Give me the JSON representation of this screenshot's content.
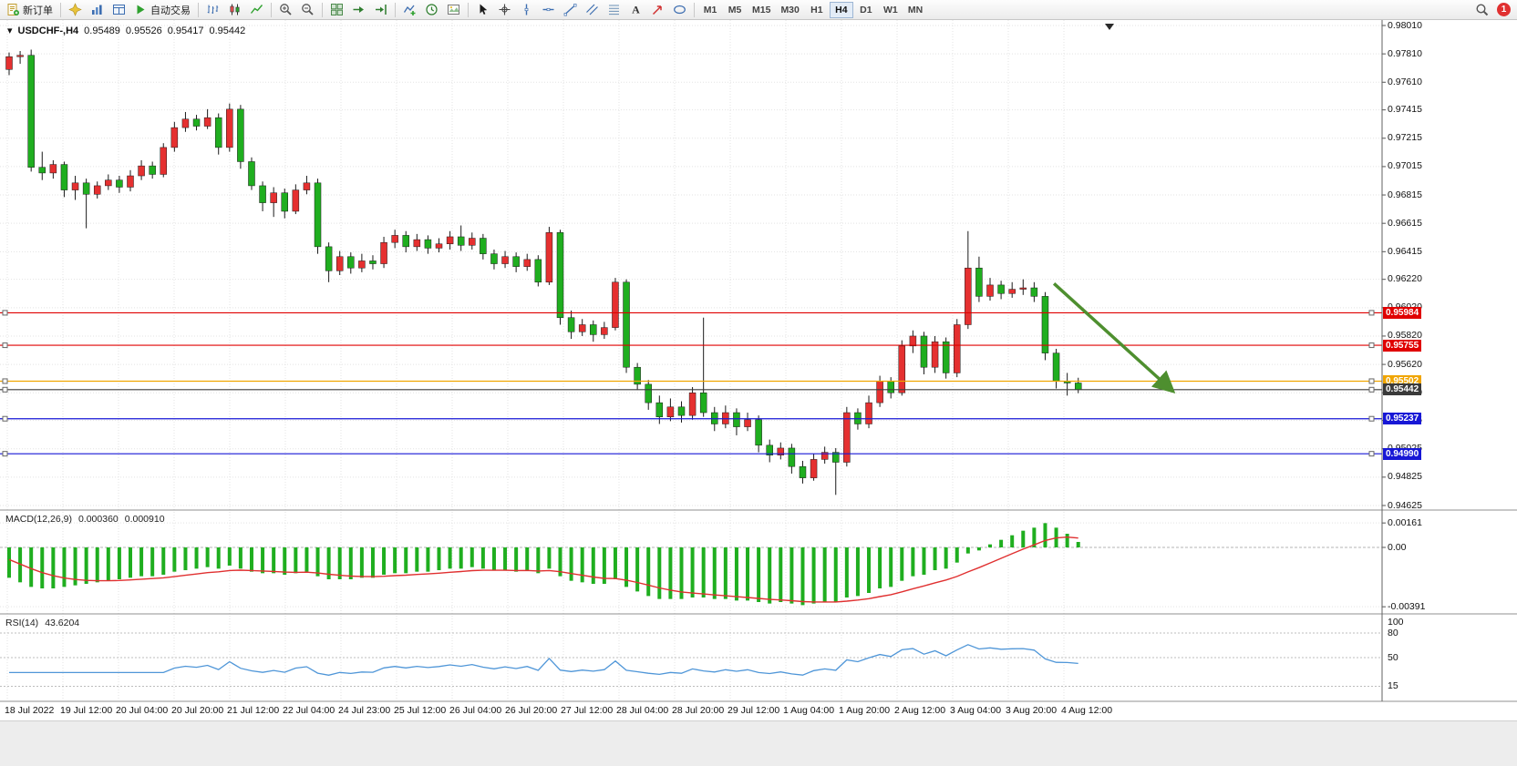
{
  "toolbar": {
    "new_order_label": "新订单",
    "autotrading_label": "自动交易",
    "timeframes": [
      "M1",
      "M5",
      "M15",
      "M30",
      "H1",
      "H4",
      "D1",
      "W1",
      "MN"
    ],
    "active_timeframe": "H4",
    "notification_count": "1"
  },
  "chart_title": {
    "symbol": "USDCHF-,H4",
    "open": "0.95489",
    "high": "0.95526",
    "low": "0.95417",
    "close": "0.95442"
  },
  "chart_data": [
    {
      "type": "candlestick",
      "title": "USDCHF- H4 price chart",
      "price_range": {
        "top": 0.9801,
        "bottom": 0.94625
      },
      "colors": {
        "up": "#e53030",
        "down": "#1fae1f"
      },
      "axis_labels": [
        "0.98010",
        "0.97810",
        "0.97610",
        "0.97415",
        "0.97215",
        "0.97015",
        "0.96815",
        "0.96615",
        "0.96415",
        "0.96220",
        "0.96020",
        "0.95820",
        "0.95620",
        "0.95420",
        "0.95225",
        "0.95025",
        "0.94825",
        "0.94625"
      ],
      "time_labels": [
        "18 Jul 2022",
        "19 Jul 12:00",
        "20 Jul 04:00",
        "20 Jul 20:00",
        "21 Jul 12:00",
        "22 Jul 04:00",
        "24 Jul 23:00",
        "25 Jul 12:00",
        "26 Jul 04:00",
        "26 Jul 20:00",
        "27 Jul 12:00",
        "28 Jul 04:00",
        "28 Jul 20:00",
        "29 Jul 12:00",
        "1 Aug 04:00",
        "1 Aug 20:00",
        "2 Aug 12:00",
        "3 Aug 04:00",
        "3 Aug 20:00",
        "4 Aug 12:00"
      ],
      "horizontal_lines": [
        {
          "price": 0.95984,
          "label": "0.95984",
          "color": "#e00000"
        },
        {
          "price": 0.95755,
          "label": "0.95755",
          "color": "#e00000"
        },
        {
          "price": 0.95502,
          "label": "0.95502",
          "color": "#f0a500"
        },
        {
          "price": 0.95442,
          "label": "0.95442",
          "color": "#3a3a3a"
        },
        {
          "price": 0.95237,
          "label": "0.95237",
          "color": "#1717d6"
        },
        {
          "price": 0.9499,
          "label": "0.94990",
          "color": "#1717d6"
        }
      ],
      "trend_arrow": {
        "color": "#4e8f2f",
        "from": {
          "bar": 94.8,
          "price": 0.9619
        },
        "to": {
          "bar": 105.6,
          "price": 0.9543
        }
      },
      "candles": [
        [
          0.977,
          0.9782,
          0.9766,
          0.9779
        ],
        [
          0.9779,
          0.9783,
          0.9774,
          0.978
        ],
        [
          0.978,
          0.9784,
          0.9698,
          0.9701
        ],
        [
          0.9701,
          0.9712,
          0.9692,
          0.9697
        ],
        [
          0.9697,
          0.9706,
          0.9693,
          0.9703
        ],
        [
          0.9703,
          0.9705,
          0.968,
          0.9685
        ],
        [
          0.9685,
          0.9695,
          0.9678,
          0.969
        ],
        [
          0.969,
          0.9693,
          0.9658,
          0.9682
        ],
        [
          0.9682,
          0.9691,
          0.9679,
          0.9688
        ],
        [
          0.9688,
          0.9696,
          0.9685,
          0.9692
        ],
        [
          0.9692,
          0.9695,
          0.9683,
          0.9687
        ],
        [
          0.9687,
          0.9699,
          0.9684,
          0.9695
        ],
        [
          0.9695,
          0.9706,
          0.9692,
          0.9702
        ],
        [
          0.9702,
          0.9705,
          0.9693,
          0.9696
        ],
        [
          0.9696,
          0.9718,
          0.9694,
          0.9715
        ],
        [
          0.9715,
          0.9733,
          0.9712,
          0.9729
        ],
        [
          0.9729,
          0.974,
          0.9726,
          0.9735
        ],
        [
          0.9735,
          0.9738,
          0.9727,
          0.973
        ],
        [
          0.973,
          0.9742,
          0.9728,
          0.9736
        ],
        [
          0.9736,
          0.9739,
          0.971,
          0.9715
        ],
        [
          0.9715,
          0.9746,
          0.9712,
          0.9742
        ],
        [
          0.9742,
          0.9745,
          0.97,
          0.9705
        ],
        [
          0.9705,
          0.9708,
          0.9685,
          0.9688
        ],
        [
          0.9688,
          0.9691,
          0.967,
          0.9676
        ],
        [
          0.9676,
          0.9687,
          0.9666,
          0.9683
        ],
        [
          0.9683,
          0.9686,
          0.9665,
          0.967
        ],
        [
          0.967,
          0.9689,
          0.9668,
          0.9685
        ],
        [
          0.9685,
          0.9695,
          0.9682,
          0.969
        ],
        [
          0.969,
          0.9693,
          0.964,
          0.9645
        ],
        [
          0.9645,
          0.9648,
          0.962,
          0.9628
        ],
        [
          0.9628,
          0.9642,
          0.9625,
          0.9638
        ],
        [
          0.9638,
          0.9641,
          0.9626,
          0.963
        ],
        [
          0.963,
          0.964,
          0.9627,
          0.9635
        ],
        [
          0.9635,
          0.9639,
          0.9629,
          0.9633
        ],
        [
          0.9633,
          0.9652,
          0.963,
          0.9648
        ],
        [
          0.9648,
          0.9657,
          0.9644,
          0.9653
        ],
        [
          0.9653,
          0.9656,
          0.9641,
          0.9645
        ],
        [
          0.9645,
          0.9654,
          0.9642,
          0.965
        ],
        [
          0.965,
          0.9653,
          0.964,
          0.9644
        ],
        [
          0.9644,
          0.9651,
          0.9641,
          0.9647
        ],
        [
          0.9647,
          0.9656,
          0.9643,
          0.9652
        ],
        [
          0.9652,
          0.966,
          0.9642,
          0.9646
        ],
        [
          0.9646,
          0.9655,
          0.9643,
          0.9651
        ],
        [
          0.9651,
          0.9654,
          0.9636,
          0.964
        ],
        [
          0.964,
          0.9643,
          0.9629,
          0.9633
        ],
        [
          0.9633,
          0.9642,
          0.963,
          0.9638
        ],
        [
          0.9638,
          0.9641,
          0.9627,
          0.9631
        ],
        [
          0.9631,
          0.964,
          0.9628,
          0.9636
        ],
        [
          0.9636,
          0.9639,
          0.9617,
          0.962
        ],
        [
          0.962,
          0.9659,
          0.9618,
          0.9655
        ],
        [
          0.9655,
          0.9657,
          0.959,
          0.9595
        ],
        [
          0.9595,
          0.96,
          0.958,
          0.9585
        ],
        [
          0.9585,
          0.9594,
          0.9582,
          0.959
        ],
        [
          0.959,
          0.9593,
          0.9578,
          0.9583
        ],
        [
          0.9583,
          0.9592,
          0.958,
          0.9588
        ],
        [
          0.9588,
          0.9623,
          0.9586,
          0.962
        ],
        [
          0.962,
          0.9622,
          0.9556,
          0.956
        ],
        [
          0.956,
          0.9563,
          0.9544,
          0.9548
        ],
        [
          0.9548,
          0.9551,
          0.953,
          0.9535
        ],
        [
          0.9535,
          0.954,
          0.952,
          0.9525
        ],
        [
          0.9525,
          0.9538,
          0.9522,
          0.9532
        ],
        [
          0.9532,
          0.9536,
          0.9521,
          0.9526
        ],
        [
          0.9526,
          0.9546,
          0.9523,
          0.9542
        ],
        [
          0.9542,
          0.9595,
          0.9525,
          0.9528
        ],
        [
          0.9528,
          0.9532,
          0.9515,
          0.952
        ],
        [
          0.952,
          0.9533,
          0.9517,
          0.9528
        ],
        [
          0.9528,
          0.9531,
          0.9512,
          0.9518
        ],
        [
          0.9518,
          0.9528,
          0.9515,
          0.9523
        ],
        [
          0.9523,
          0.9526,
          0.95,
          0.9505
        ],
        [
          0.9505,
          0.9509,
          0.9493,
          0.9498
        ],
        [
          0.9498,
          0.9507,
          0.9495,
          0.9503
        ],
        [
          0.9503,
          0.9506,
          0.9485,
          0.949
        ],
        [
          0.949,
          0.9494,
          0.9478,
          0.9482
        ],
        [
          0.9482,
          0.9499,
          0.948,
          0.9495
        ],
        [
          0.9495,
          0.9504,
          0.9492,
          0.95
        ],
        [
          0.95,
          0.9503,
          0.947,
          0.9493
        ],
        [
          0.9493,
          0.9532,
          0.949,
          0.9528
        ],
        [
          0.9528,
          0.9531,
          0.9516,
          0.952
        ],
        [
          0.952,
          0.954,
          0.9517,
          0.9535
        ],
        [
          0.9535,
          0.9554,
          0.9532,
          0.955
        ],
        [
          0.955,
          0.9553,
          0.9538,
          0.9542
        ],
        [
          0.9542,
          0.9579,
          0.954,
          0.9575
        ],
        [
          0.9575,
          0.9586,
          0.957,
          0.9582
        ],
        [
          0.9582,
          0.9585,
          0.9555,
          0.956
        ],
        [
          0.956,
          0.9582,
          0.9556,
          0.9578
        ],
        [
          0.9578,
          0.9581,
          0.9552,
          0.9556
        ],
        [
          0.9556,
          0.9594,
          0.9553,
          0.959
        ],
        [
          0.959,
          0.9656,
          0.9587,
          0.963
        ],
        [
          0.963,
          0.9638,
          0.9606,
          0.961
        ],
        [
          0.961,
          0.9623,
          0.9607,
          0.9618
        ],
        [
          0.9618,
          0.9621,
          0.9608,
          0.9612
        ],
        [
          0.9612,
          0.962,
          0.9609,
          0.9615
        ],
        [
          0.9615,
          0.9622,
          0.9611,
          0.9616
        ],
        [
          0.9616,
          0.962,
          0.9606,
          0.961
        ],
        [
          0.961,
          0.9613,
          0.9565,
          0.957
        ],
        [
          0.957,
          0.9573,
          0.9545,
          0.955
        ],
        [
          0.955,
          0.9556,
          0.954,
          0.95489
        ],
        [
          0.95489,
          0.95526,
          0.95417,
          0.95442
        ]
      ]
    },
    {
      "type": "bar",
      "name": "MACD",
      "label": "MACD(12,26,9)",
      "main_value": "0.000360",
      "signal_value": "0.000910",
      "histogram_color": "#1fae1f",
      "signal_color": "#e03030",
      "axis_labels": [
        {
          "text": "0.00161",
          "value": 0.00161
        },
        {
          "text": "0.00",
          "value": 0
        },
        {
          "text": "-0.00391",
          "value": -0.00391
        }
      ],
      "histogram": [
        -0.002,
        -0.0023,
        -0.0026,
        -0.0027,
        -0.0027,
        -0.0026,
        -0.0025,
        -0.0024,
        -0.0023,
        -0.0022,
        -0.0021,
        -0.002,
        -0.0019,
        -0.0019,
        -0.0018,
        -0.0016,
        -0.0015,
        -0.0014,
        -0.0013,
        -0.0014,
        -0.0012,
        -0.0014,
        -0.0016,
        -0.0017,
        -0.0017,
        -0.0018,
        -0.0017,
        -0.0016,
        -0.0019,
        -0.0021,
        -0.0021,
        -0.0021,
        -0.002,
        -0.002,
        -0.0018,
        -0.0017,
        -0.0017,
        -0.0016,
        -0.0016,
        -0.0015,
        -0.0014,
        -0.0014,
        -0.0013,
        -0.0014,
        -0.0015,
        -0.0015,
        -0.0016,
        -0.0015,
        -0.0017,
        -0.0014,
        -0.0019,
        -0.0022,
        -0.0023,
        -0.0024,
        -0.0024,
        -0.0021,
        -0.0026,
        -0.0029,
        -0.0032,
        -0.0034,
        -0.0034,
        -0.0034,
        -0.0033,
        -0.0033,
        -0.0034,
        -0.0034,
        -0.0035,
        -0.0035,
        -0.0036,
        -0.0037,
        -0.0036,
        -0.0037,
        -0.0038,
        -0.0037,
        -0.0036,
        -0.0036,
        -0.0033,
        -0.0032,
        -0.003,
        -0.0027,
        -0.0026,
        -0.0022,
        -0.0019,
        -0.0018,
        -0.0015,
        -0.0014,
        -0.001,
        -0.0004,
        -0.0002,
        0.0002,
        0.0005,
        0.0008,
        0.0011,
        0.0013,
        0.0016,
        0.0013,
        0.0009,
        0.00036
      ]
    },
    {
      "type": "line",
      "name": "RSI",
      "label": "RSI(14)",
      "value": "43.6204",
      "line_color": "#4f96d8",
      "period": 14,
      "levels": [
        80,
        50,
        15
      ],
      "axis_labels": [
        {
          "text": "100",
          "value": 100
        },
        {
          "text": "80",
          "value": 80
        },
        {
          "text": "50",
          "value": 50
        },
        {
          "text": "15",
          "value": 15
        }
      ]
    }
  ]
}
